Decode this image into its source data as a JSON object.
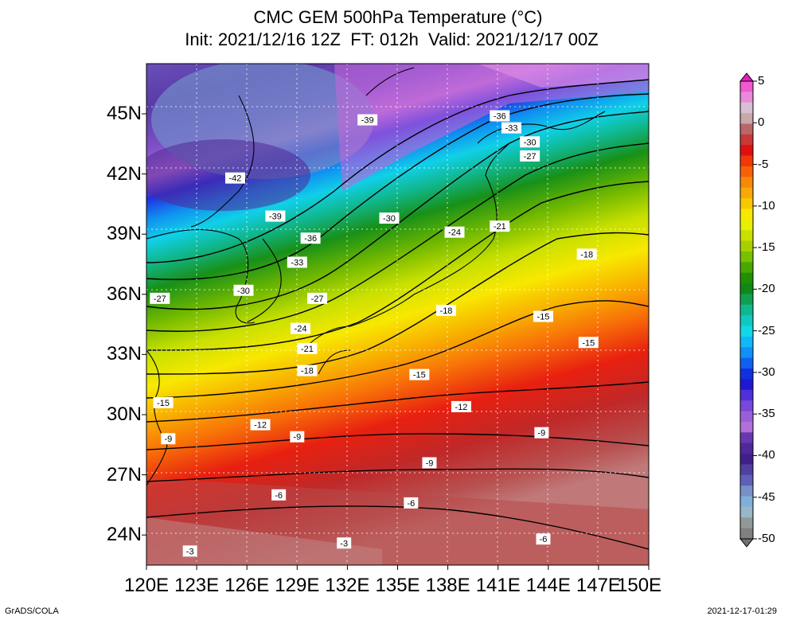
{
  "title": {
    "line1": "CMC GEM 500hPa Temperature (°C)",
    "line2": "Init: 2021/12/16 12Z  FT: 012h  Valid: 2021/12/17 00Z"
  },
  "axes": {
    "lat_labels": [
      "45N",
      "42N",
      "39N",
      "36N",
      "33N",
      "30N",
      "27N",
      "24N"
    ],
    "lat_values": [
      45,
      42,
      39,
      36,
      33,
      30,
      27,
      24
    ],
    "lon_labels": [
      "120E",
      "123E",
      "126E",
      "129E",
      "132E",
      "135E",
      "138E",
      "141E",
      "144E",
      "147E",
      "150E"
    ],
    "lon_values": [
      120,
      123,
      126,
      129,
      132,
      135,
      138,
      141,
      144,
      147,
      150
    ],
    "lat_range": [
      22.5,
      47.5
    ],
    "lon_range": [
      120,
      150
    ]
  },
  "colorbar": {
    "labels": [
      "5",
      "0",
      "-5",
      "-10",
      "-15",
      "-20",
      "-25",
      "-30",
      "-35",
      "-40",
      "-45",
      "-50"
    ],
    "values": [
      5,
      0,
      -5,
      -10,
      -15,
      -20,
      -25,
      -30,
      -35,
      -40,
      -45,
      -50
    ],
    "colors": [
      "#f05ad0",
      "#e88ad8",
      "#d8c0d4",
      "#c8a8a8",
      "#b86868",
      "#c83838",
      "#e01010",
      "#f03808",
      "#f86008",
      "#f88808",
      "#f8a808",
      "#f8c800",
      "#f8e800",
      "#e8f000",
      "#c8e000",
      "#a8d000",
      "#78c000",
      "#48a800",
      "#209000",
      "#108818",
      "#10a050",
      "#10b890",
      "#10c8c0",
      "#10d8e8",
      "#10b8f8",
      "#1090f8",
      "#1060f0",
      "#1030e0",
      "#2018d0",
      "#5030d8",
      "#7848d8",
      "#9860d8",
      "#b070d8",
      "#6838b0",
      "#502898",
      "#402088",
      "#5040a0",
      "#6060b8",
      "#7890c8",
      "#80b0d8",
      "#98b8c8",
      "#909898",
      "#808080"
    ]
  },
  "contour_labels": [
    {
      "text": "-39",
      "lon": 133.2,
      "lat": 44.7
    },
    {
      "text": "-36",
      "lon": 141.1,
      "lat": 44.9
    },
    {
      "text": "-33",
      "lon": 141.8,
      "lat": 44.3
    },
    {
      "text": "-30",
      "lon": 142.9,
      "lat": 43.6
    },
    {
      "text": "-27",
      "lon": 142.9,
      "lat": 42.9
    },
    {
      "text": "-42",
      "lon": 125.3,
      "lat": 41.8
    },
    {
      "text": "-39",
      "lon": 127.7,
      "lat": 39.9
    },
    {
      "text": "-30",
      "lon": 134.5,
      "lat": 39.8
    },
    {
      "text": "-21",
      "lon": 141.1,
      "lat": 39.4
    },
    {
      "text": "-24",
      "lon": 138.4,
      "lat": 39.1
    },
    {
      "text": "-36",
      "lon": 129.8,
      "lat": 38.8
    },
    {
      "text": "-18",
      "lon": 146.3,
      "lat": 38.0
    },
    {
      "text": "-33",
      "lon": 129.0,
      "lat": 37.6
    },
    {
      "text": "-30",
      "lon": 125.8,
      "lat": 36.2
    },
    {
      "text": "-27",
      "lon": 120.8,
      "lat": 35.8
    },
    {
      "text": "-27",
      "lon": 130.2,
      "lat": 35.8
    },
    {
      "text": "-18",
      "lon": 137.9,
      "lat": 35.2
    },
    {
      "text": "-15",
      "lon": 143.7,
      "lat": 34.9
    },
    {
      "text": "-24",
      "lon": 129.2,
      "lat": 34.3
    },
    {
      "text": "-15",
      "lon": 146.4,
      "lat": 33.6
    },
    {
      "text": "-21",
      "lon": 129.6,
      "lat": 33.3
    },
    {
      "text": "-18",
      "lon": 129.6,
      "lat": 32.2
    },
    {
      "text": "-15",
      "lon": 136.3,
      "lat": 32.0
    },
    {
      "text": "-15",
      "lon": 121.0,
      "lat": 30.6
    },
    {
      "text": "-12",
      "lon": 138.8,
      "lat": 30.4
    },
    {
      "text": "-12",
      "lon": 126.8,
      "lat": 29.5
    },
    {
      "text": "-9",
      "lon": 143.6,
      "lat": 29.1
    },
    {
      "text": "-9",
      "lon": 121.3,
      "lat": 28.8
    },
    {
      "text": "-9",
      "lon": 129.0,
      "lat": 28.9
    },
    {
      "text": "-9",
      "lon": 136.9,
      "lat": 27.6
    },
    {
      "text": "-6",
      "lon": 127.9,
      "lat": 26.0
    },
    {
      "text": "-6",
      "lon": 135.8,
      "lat": 25.6
    },
    {
      "text": "-6",
      "lon": 143.7,
      "lat": 23.8
    },
    {
      "text": "-3",
      "lon": 122.6,
      "lat": 23.2
    },
    {
      "text": "-3",
      "lon": 131.8,
      "lat": 23.6
    }
  ],
  "footer": {
    "left": "GrADS/COLA",
    "right": "2021-12-17-01:29"
  }
}
